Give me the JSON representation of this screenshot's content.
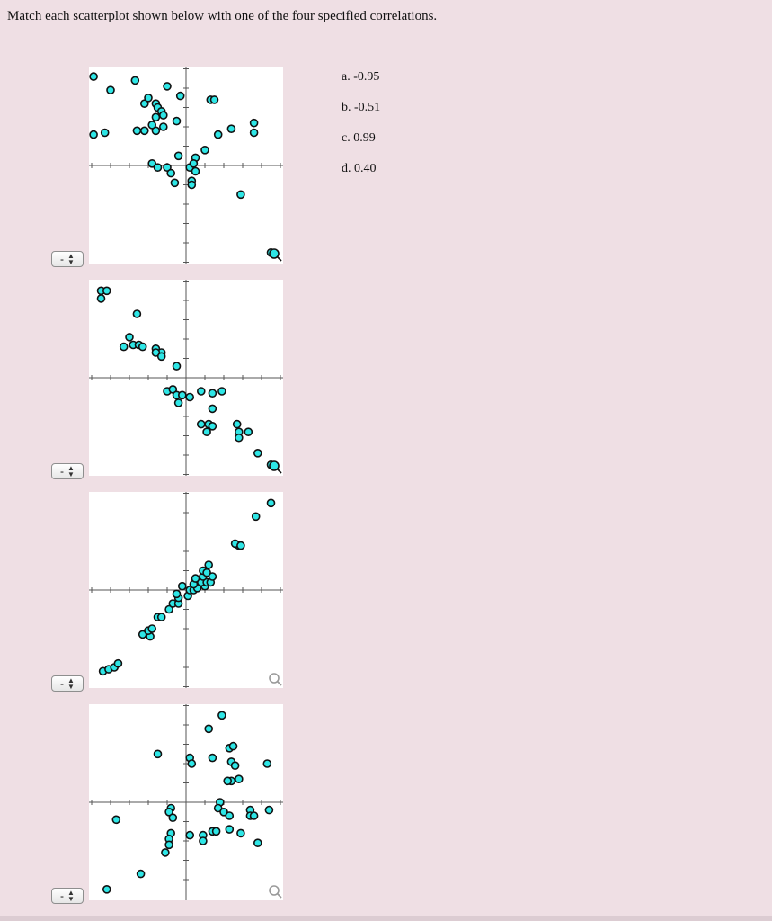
{
  "question": {
    "instruction": "Match each scatterplot shown below with one of the four specified correlations."
  },
  "options": [
    {
      "label": "a.",
      "value": "-0.95"
    },
    {
      "label": "b.",
      "value": "-0.51"
    },
    {
      "label": "c.",
      "value": "0.99"
    },
    {
      "label": "d.",
      "value": "0.40"
    }
  ],
  "selectors": [
    {
      "selected": "-"
    },
    {
      "selected": "-"
    },
    {
      "selected": "-"
    },
    {
      "selected": "-"
    }
  ],
  "icons": {
    "selector": "up-down-arrows-icon",
    "plot_tool": "magnifier-icon"
  },
  "colors": {
    "point_fill": "#2ee6e6",
    "point_stroke": "#111111",
    "plot_background": "#ffffff",
    "page_background": "#efdfe4"
  },
  "chart_data": [
    {
      "type": "scatter",
      "points": [
        [
          -4.9,
          4.6
        ],
        [
          -4.0,
          3.9
        ],
        [
          -2.7,
          4.4
        ],
        [
          -1.0,
          4.1
        ],
        [
          -0.3,
          3.6
        ],
        [
          1.3,
          3.4
        ],
        [
          1.5,
          3.4
        ],
        [
          3.6,
          2.2
        ],
        [
          -2.2,
          3.2
        ],
        [
          -1.6,
          3.2
        ],
        [
          -2.0,
          3.5
        ],
        [
          -1.5,
          3.0
        ],
        [
          -1.3,
          2.8
        ],
        [
          -1.6,
          2.5
        ],
        [
          -1.2,
          2.6
        ],
        [
          -2.6,
          1.8
        ],
        [
          -2.2,
          1.8
        ],
        [
          -1.6,
          1.8
        ],
        [
          -1.2,
          2.0
        ],
        [
          -1.8,
          2.1
        ],
        [
          -0.5,
          2.3
        ],
        [
          -4.3,
          1.7
        ],
        [
          -4.9,
          1.6
        ],
        [
          3.6,
          1.7
        ],
        [
          1.7,
          1.6
        ],
        [
          2.4,
          1.9
        ],
        [
          1.0,
          0.8
        ],
        [
          0.5,
          0.4
        ],
        [
          -0.4,
          0.5
        ],
        [
          -1.8,
          0.1
        ],
        [
          -1.5,
          -0.1
        ],
        [
          -1.0,
          -0.1
        ],
        [
          0.2,
          -0.1
        ],
        [
          0.4,
          0.1
        ],
        [
          0.5,
          -0.3
        ],
        [
          -0.6,
          -0.9
        ],
        [
          0.3,
          -0.8
        ],
        [
          -0.8,
          -0.4
        ],
        [
          0.3,
          -1.0
        ],
        [
          2.9,
          -1.5
        ],
        [
          4.5,
          -4.5
        ]
      ]
    },
    {
      "type": "scatter",
      "points": [
        [
          -4.5,
          4.5
        ],
        [
          -4.2,
          4.5
        ],
        [
          -4.5,
          4.1
        ],
        [
          -2.6,
          3.3
        ],
        [
          -3.0,
          2.1
        ],
        [
          -3.3,
          1.6
        ],
        [
          -2.8,
          1.7
        ],
        [
          -2.5,
          1.7
        ],
        [
          -2.3,
          1.6
        ],
        [
          -1.6,
          1.5
        ],
        [
          -1.3,
          1.3
        ],
        [
          -1.6,
          1.3
        ],
        [
          -1.3,
          1.1
        ],
        [
          -0.5,
          0.6
        ],
        [
          -1.0,
          -0.7
        ],
        [
          -0.7,
          -0.6
        ],
        [
          -0.5,
          -0.9
        ],
        [
          -0.4,
          -1.3
        ],
        [
          -0.2,
          -0.9
        ],
        [
          0.2,
          -1.0
        ],
        [
          0.8,
          -0.7
        ],
        [
          1.4,
          -0.8
        ],
        [
          1.9,
          -0.7
        ],
        [
          1.4,
          -1.6
        ],
        [
          0.8,
          -2.4
        ],
        [
          1.2,
          -2.4
        ],
        [
          1.1,
          -2.8
        ],
        [
          1.4,
          -2.5
        ],
        [
          2.7,
          -2.4
        ],
        [
          2.8,
          -2.8
        ],
        [
          2.8,
          -3.1
        ],
        [
          3.3,
          -2.8
        ],
        [
          3.8,
          -3.9
        ],
        [
          4.5,
          -4.5
        ]
      ]
    },
    {
      "type": "scatter",
      "points": [
        [
          -4.4,
          -4.2
        ],
        [
          -4.1,
          -4.1
        ],
        [
          -3.8,
          -4.0
        ],
        [
          -3.6,
          -3.8
        ],
        [
          -2.3,
          -2.3
        ],
        [
          -1.9,
          -2.4
        ],
        [
          -2.0,
          -2.1
        ],
        [
          -1.8,
          -2.0
        ],
        [
          -1.5,
          -1.4
        ],
        [
          -1.3,
          -1.4
        ],
        [
          -0.9,
          -1.0
        ],
        [
          -0.7,
          -0.7
        ],
        [
          -0.4,
          -0.7
        ],
        [
          -0.4,
          -0.4
        ],
        [
          -0.5,
          -0.2
        ],
        [
          0.1,
          -0.3
        ],
        [
          0.2,
          0.0
        ],
        [
          0.4,
          0.0
        ],
        [
          0.6,
          0.1
        ],
        [
          0.9,
          0.5
        ],
        [
          1.0,
          0.2
        ],
        [
          0.8,
          0.4
        ],
        [
          1.1,
          0.4
        ],
        [
          1.3,
          0.4
        ],
        [
          0.9,
          0.7
        ],
        [
          0.9,
          1.0
        ],
        [
          1.1,
          0.9
        ],
        [
          1.4,
          0.7
        ],
        [
          1.2,
          1.3
        ],
        [
          0.4,
          0.3
        ],
        [
          -0.2,
          0.2
        ],
        [
          0.5,
          0.6
        ],
        [
          2.8,
          2.3
        ],
        [
          2.6,
          2.4
        ],
        [
          2.9,
          2.3
        ],
        [
          3.7,
          3.8
        ],
        [
          4.5,
          4.5
        ]
      ]
    },
    {
      "type": "scatter",
      "points": [
        [
          1.9,
          4.5
        ],
        [
          1.2,
          3.8
        ],
        [
          2.3,
          2.8
        ],
        [
          2.5,
          2.9
        ],
        [
          -1.5,
          2.5
        ],
        [
          0.2,
          2.3
        ],
        [
          0.3,
          2.0
        ],
        [
          1.4,
          2.3
        ],
        [
          2.4,
          2.1
        ],
        [
          2.6,
          1.9
        ],
        [
          2.8,
          1.2
        ],
        [
          2.4,
          1.1
        ],
        [
          2.2,
          1.1
        ],
        [
          4.3,
          2.0
        ],
        [
          -3.7,
          -0.9
        ],
        [
          -0.8,
          -0.3
        ],
        [
          -0.9,
          -0.5
        ],
        [
          -0.7,
          -0.8
        ],
        [
          1.8,
          0.0
        ],
        [
          1.7,
          -0.3
        ],
        [
          2.0,
          -0.5
        ],
        [
          2.3,
          -0.7
        ],
        [
          3.4,
          -0.4
        ],
        [
          3.4,
          -0.7
        ],
        [
          3.6,
          -0.7
        ],
        [
          4.4,
          -0.4
        ],
        [
          -0.8,
          -1.6
        ],
        [
          -0.9,
          -1.9
        ],
        [
          -0.9,
          -2.2
        ],
        [
          -1.1,
          -2.6
        ],
        [
          0.2,
          -1.7
        ],
        [
          0.9,
          -1.7
        ],
        [
          0.9,
          -2.0
        ],
        [
          1.4,
          -1.5
        ],
        [
          1.6,
          -1.5
        ],
        [
          2.3,
          -1.4
        ],
        [
          2.9,
          -1.6
        ],
        [
          3.8,
          -2.1
        ],
        [
          -2.4,
          -3.7
        ],
        [
          -4.2,
          -4.5
        ]
      ]
    }
  ]
}
